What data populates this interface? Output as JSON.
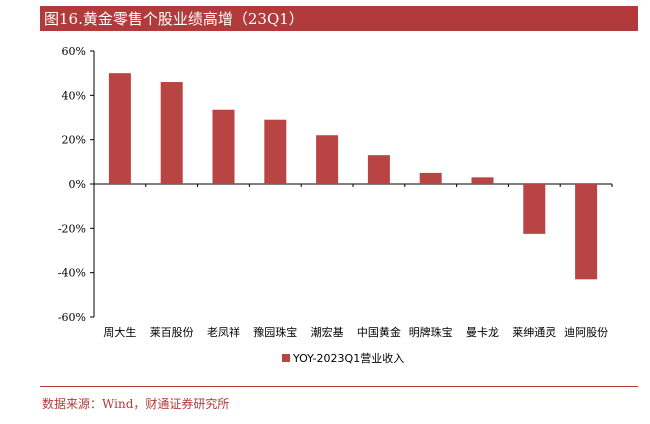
{
  "title": "图16.黄金零售个股业绩高增（23Q1）",
  "source": "数据来源：Wind，财通证券研究所",
  "colors": {
    "accent": "#b23a3a",
    "bar": "#b94444"
  },
  "chart_data": {
    "type": "bar",
    "categories": [
      "周大生",
      "莱百股份",
      "老凤祥",
      "豫园珠宝",
      "潮宏基",
      "中国黄金",
      "明牌珠宝",
      "曼卡龙",
      "莱绅通灵",
      "迪阿股份"
    ],
    "series": [
      {
        "name": "YOY-2023Q1营业收入",
        "values": [
          50,
          46,
          33.5,
          29,
          22,
          13,
          5,
          3,
          -22.5,
          -43
        ]
      }
    ],
    "ylim": [
      -60,
      60
    ],
    "yticks": [
      "60%",
      "40%",
      "20%",
      "0%",
      "-20%",
      "-40%",
      "-60%"
    ],
    "ytick_values": [
      60,
      40,
      20,
      0,
      -20,
      -40,
      -60
    ],
    "grid": false,
    "legend": "bottom-center"
  }
}
